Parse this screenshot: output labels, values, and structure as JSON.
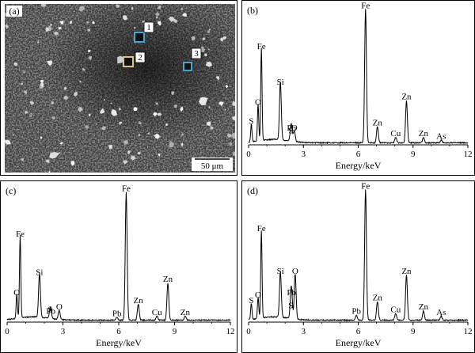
{
  "sem_image": {
    "panel_label": "(a)",
    "scale_bar": "50 μm",
    "markers": [
      {
        "label": "1",
        "color": "#4aa6c9"
      },
      {
        "label": "2",
        "color": "#d9c28a"
      },
      {
        "label": "3",
        "color": "#4aa6c9"
      }
    ]
  },
  "chart_data": [
    {
      "type": "line",
      "panel_label": "(b)",
      "xlabel": "Energy/keV",
      "xlim": [
        0,
        12
      ],
      "ylim": [
        0,
        1
      ],
      "xticks": [
        0,
        3,
        6,
        9,
        12
      ],
      "peaks": [
        {
          "label": "S",
          "x": 0.15,
          "y": 0.13
        },
        {
          "label": "Fe",
          "x": 0.7,
          "y": 0.68
        },
        {
          "label": "O",
          "x": 0.52,
          "y": 0.27
        },
        {
          "label": "Si",
          "x": 1.74,
          "y": 0.42
        },
        {
          "label": "S",
          "x": 2.31,
          "y": 0.06
        },
        {
          "label": "O",
          "x": 2.5,
          "y": 0.08
        },
        {
          "label": "Pb",
          "x": 2.35,
          "y": 0.08
        },
        {
          "label": "Fe",
          "x": 6.4,
          "y": 0.98
        },
        {
          "label": "Zn",
          "x": 7.05,
          "y": 0.12
        },
        {
          "label": "Cu",
          "x": 8.05,
          "y": 0.04
        },
        {
          "label": "Zn",
          "x": 8.64,
          "y": 0.31
        },
        {
          "label": "Zn",
          "x": 9.57,
          "y": 0.04
        },
        {
          "label": "As",
          "x": 10.54,
          "y": 0.02
        }
      ]
    },
    {
      "type": "line",
      "panel_label": "(c)",
      "xlabel": "Energy/keV",
      "xlim": [
        0,
        12
      ],
      "ylim": [
        0,
        1
      ],
      "xticks": [
        0,
        3,
        6,
        9,
        12
      ],
      "peaks": [
        {
          "label": "Fe",
          "x": 0.7,
          "y": 0.62
        },
        {
          "label": "O",
          "x": 0.52,
          "y": 0.18
        },
        {
          "label": "Si",
          "x": 1.74,
          "y": 0.33
        },
        {
          "label": "S",
          "x": 2.31,
          "y": 0.05
        },
        {
          "label": "O",
          "x": 2.8,
          "y": 0.07
        },
        {
          "label": "Pb",
          "x": 2.35,
          "y": 0.04
        },
        {
          "label": "Pb",
          "x": 5.9,
          "y": 0.02
        },
        {
          "label": "Fe",
          "x": 6.4,
          "y": 0.96
        },
        {
          "label": "Zn",
          "x": 7.05,
          "y": 0.12
        },
        {
          "label": "Cu",
          "x": 8.05,
          "y": 0.03
        },
        {
          "label": "Zn",
          "x": 8.64,
          "y": 0.28
        },
        {
          "label": "Zn",
          "x": 9.57,
          "y": 0.03
        }
      ]
    },
    {
      "type": "line",
      "panel_label": "(d)",
      "xlabel": "Energy/keV",
      "xlim": [
        0,
        12
      ],
      "ylim": [
        0,
        1
      ],
      "xticks": [
        0,
        3,
        6,
        9,
        12
      ],
      "peaks": [
        {
          "label": "S",
          "x": 0.15,
          "y": 0.12
        },
        {
          "label": "Fe",
          "x": 0.7,
          "y": 0.66
        },
        {
          "label": "O",
          "x": 0.52,
          "y": 0.16
        },
        {
          "label": "Si",
          "x": 1.74,
          "y": 0.34
        },
        {
          "label": "S",
          "x": 2.31,
          "y": 0.08
        },
        {
          "label": "O",
          "x": 2.55,
          "y": 0.34
        },
        {
          "label": "Pb",
          "x": 2.35,
          "y": 0.18
        },
        {
          "label": "Pb",
          "x": 5.9,
          "y": 0.04
        },
        {
          "label": "Fe",
          "x": 6.4,
          "y": 0.98
        },
        {
          "label": "Zn",
          "x": 7.05,
          "y": 0.14
        },
        {
          "label": "Cu",
          "x": 8.05,
          "y": 0.05
        },
        {
          "label": "Zn",
          "x": 8.64,
          "y": 0.34
        },
        {
          "label": "Zn",
          "x": 9.57,
          "y": 0.07
        },
        {
          "label": "As",
          "x": 10.54,
          "y": 0.03
        }
      ]
    }
  ]
}
